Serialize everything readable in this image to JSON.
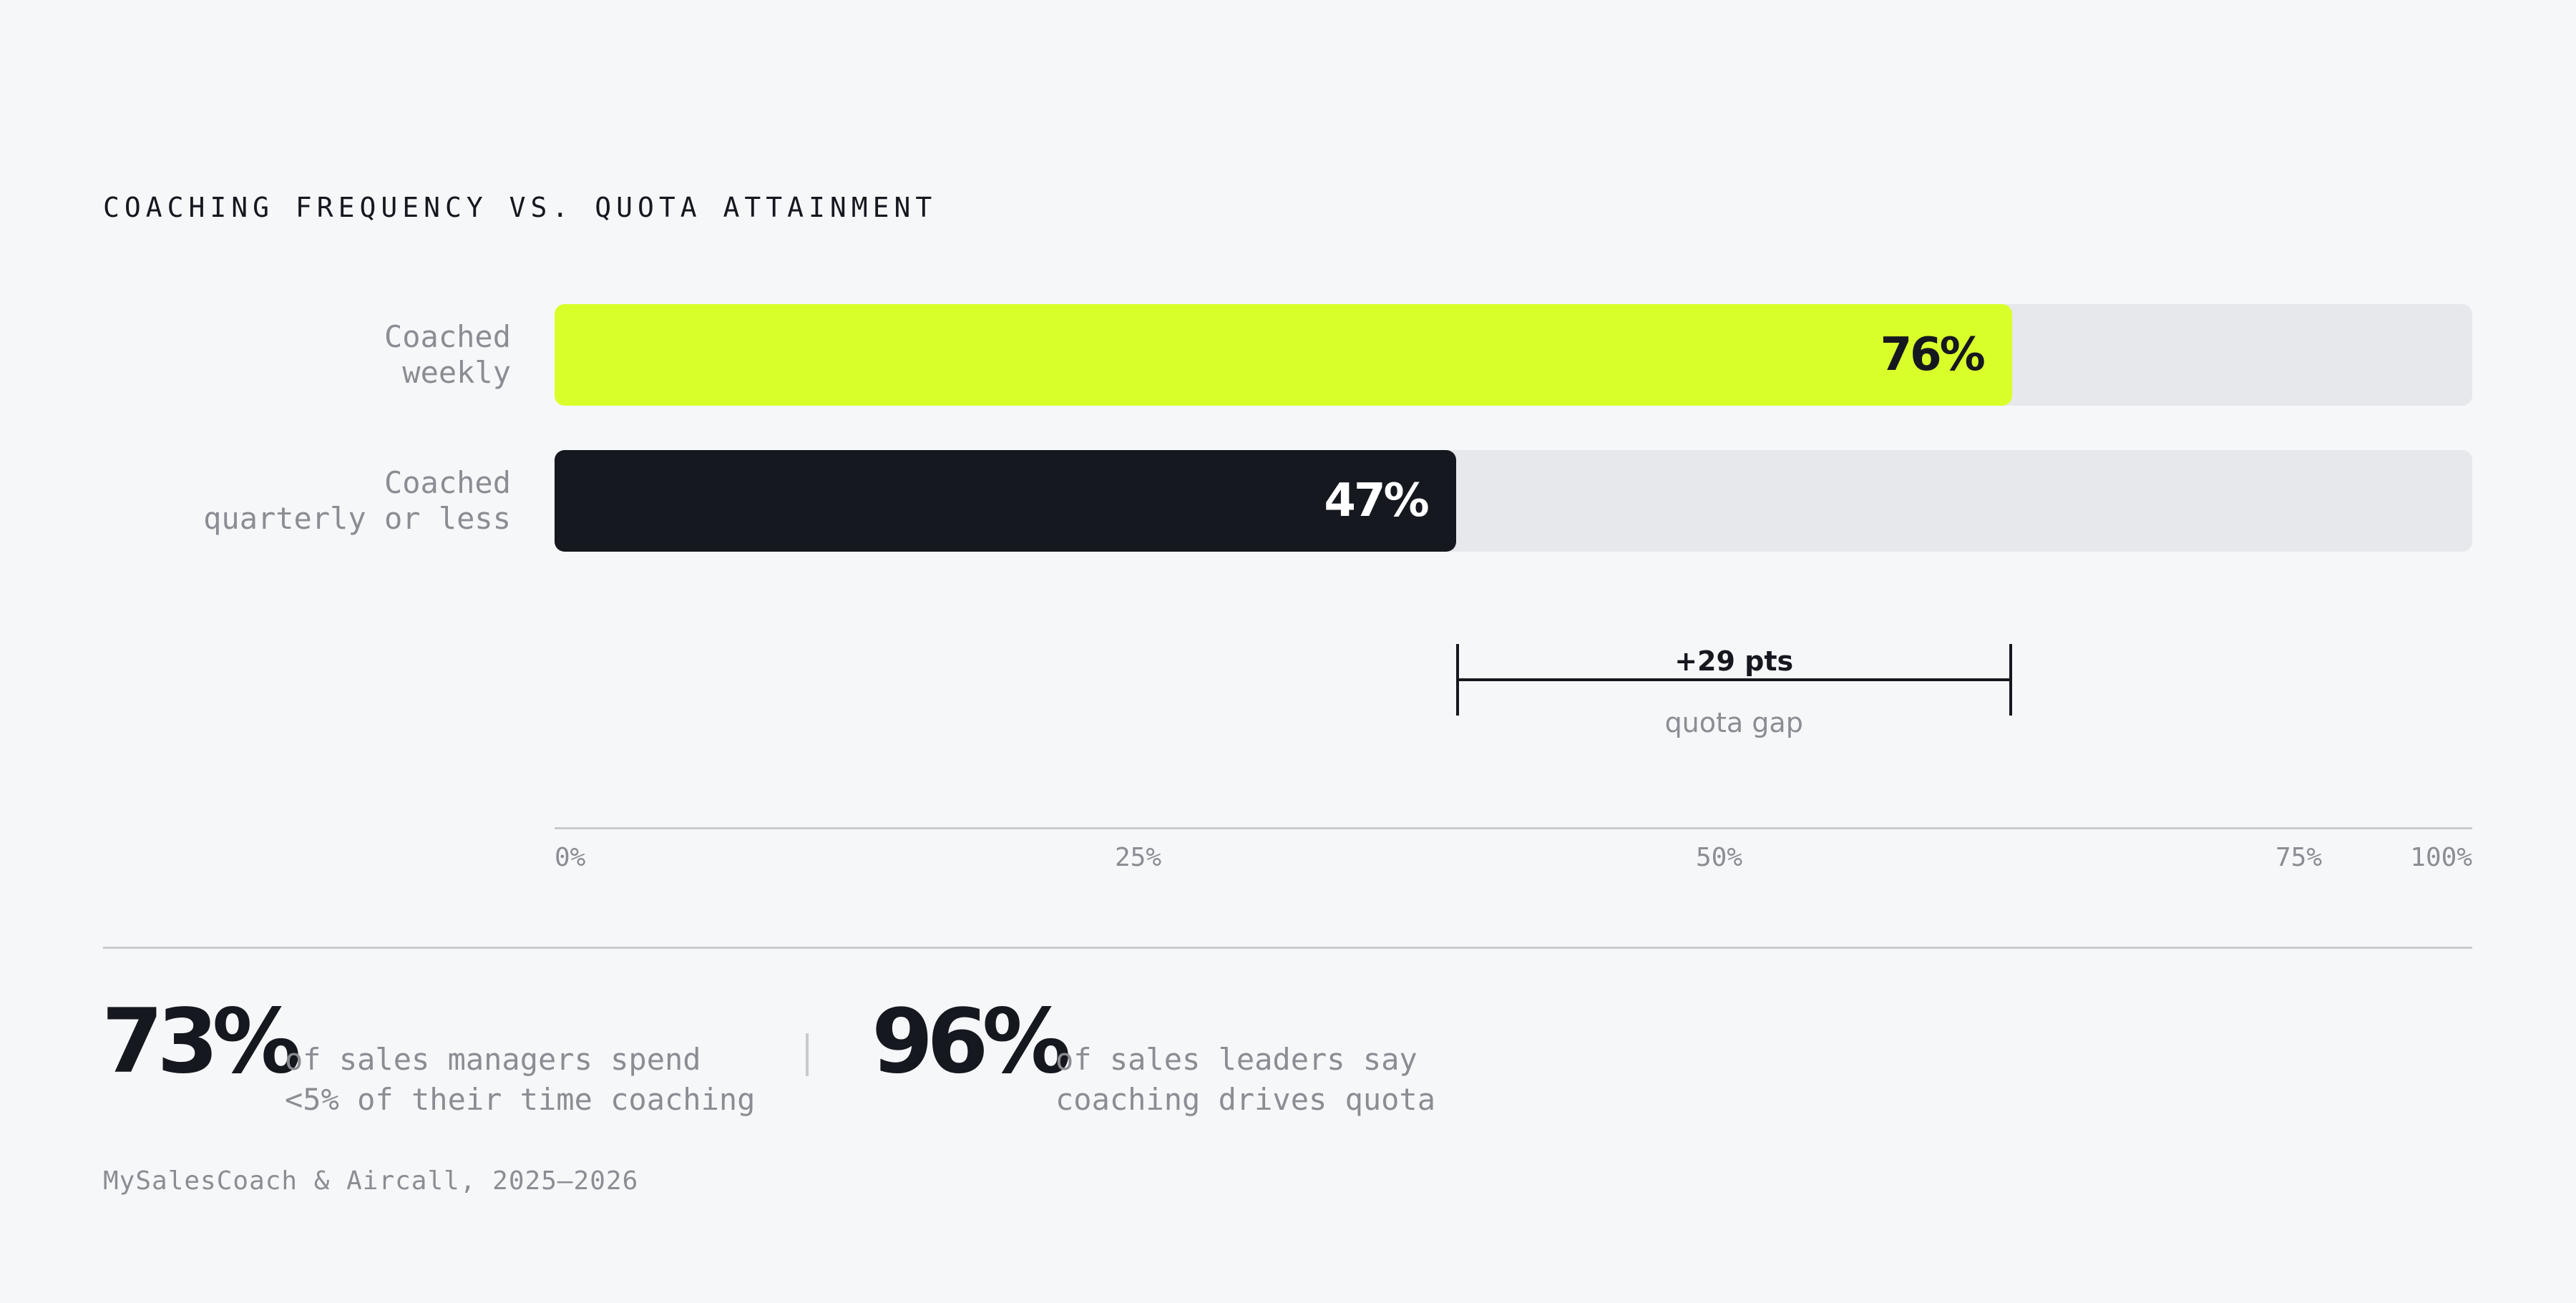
{
  "title": "COACHING FREQUENCY VS. QUOTA ATTAINMENT",
  "chart_data": {
    "type": "bar",
    "orientation": "horizontal",
    "title": "COACHING FREQUENCY VS. QUOTA ATTAINMENT",
    "categories": [
      {
        "line1": "Coached",
        "line2": "weekly"
      },
      {
        "line1": "Coached",
        "line2": "quarterly or less"
      }
    ],
    "values": [
      76,
      47
    ],
    "value_labels": [
      "76%",
      "47%"
    ],
    "colors": [
      "#d9ff2b",
      "#15181f"
    ],
    "label_colors": [
      "#15181f",
      "#ffffff"
    ],
    "track_color": "#e7e8eb",
    "xlim": [
      0,
      100
    ],
    "ticks": [
      {
        "value": 0,
        "label": "0%"
      },
      {
        "value": 25,
        "label": "25%"
      },
      {
        "value": 50,
        "label": "50%"
      },
      {
        "value": 75,
        "label": "75%"
      },
      {
        "value": 100,
        "label": "100%"
      }
    ],
    "gap_annotation": {
      "from": 47,
      "to": 76,
      "label": "+29 pts",
      "sublabel": "quota gap"
    }
  },
  "stats": [
    {
      "number": "73%",
      "line1": "of sales managers spend",
      "line2": "<5% of their time coaching"
    },
    {
      "number": "96%",
      "line1": "of sales leaders say",
      "line2": "coaching drives quota"
    }
  ],
  "source": "MySalesCoach & Aircall, 2025–2026"
}
